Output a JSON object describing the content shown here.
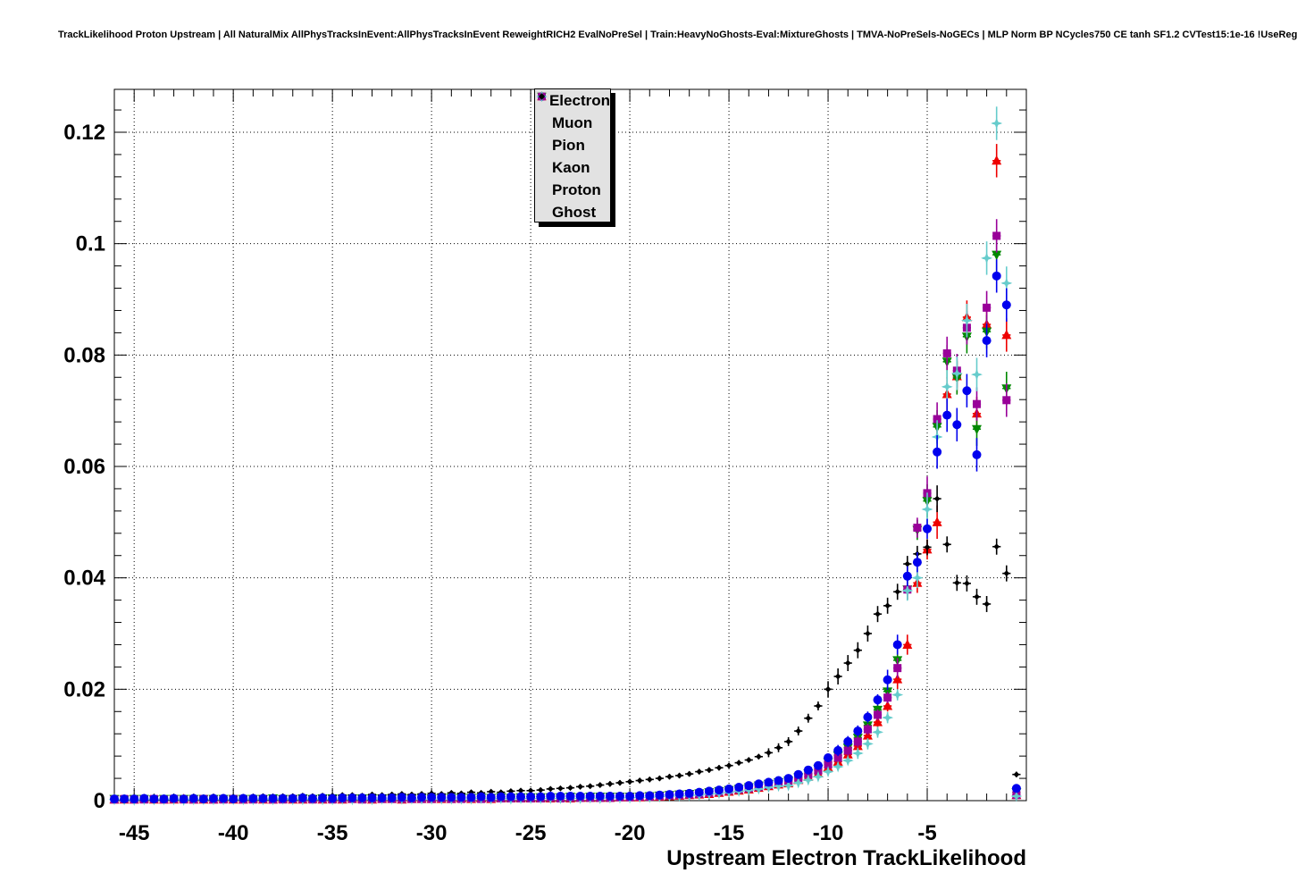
{
  "title": "TrackLikelihood Proton Upstream | All NaturalMix AllPhysTracksInEvent:AllPhysTracksInEvent ReweightRICH2 EvalNoPreSel | Train:HeavyNoGhosts-Eval:MixtureGhosts | TMVA-NoPreSels-NoGECs | MLP Norm BP NCycles750 CE tanh SF1.2 CVTest15:1e-16 !UseReg",
  "axes": {
    "x_label": "Upstream Electron TrackLikelihood",
    "x_range": [
      -46.0,
      0.0
    ],
    "y_range": [
      0.0,
      0.1277
    ],
    "x_ticks": [
      -45,
      -40,
      -35,
      -30,
      -25,
      -20,
      -15,
      -10,
      -5
    ],
    "x_tick_labels": [
      "-45",
      "-40",
      "-35",
      "-30",
      "-25",
      "-20",
      "-15",
      "-10",
      "-5"
    ],
    "y_ticks": [
      0,
      0.02,
      0.04,
      0.06,
      0.08,
      0.1,
      0.12
    ],
    "y_tick_labels": [
      "0",
      "0.02",
      "0.04",
      "0.06",
      "0.08",
      "0.1",
      "0.12"
    ],
    "x_minor_step": 1,
    "y_minor_step": 0.004,
    "grid": true
  },
  "legend": {
    "entries": [
      {
        "label": "Electron",
        "color": "#ee0000",
        "marker": "triangle-up"
      },
      {
        "label": "Muon",
        "color": "#0000ee",
        "marker": "circle"
      },
      {
        "label": "Pion",
        "color": "#008800",
        "marker": "triangle-down"
      },
      {
        "label": "Kaon",
        "color": "#990099",
        "marker": "square"
      },
      {
        "label": "Proton",
        "color": "#66cccc",
        "marker": "star4"
      },
      {
        "label": "Ghost",
        "color": "#000000",
        "marker": "small-diamond"
      }
    ]
  },
  "chart_data": {
    "type": "scatter",
    "title": "TrackLikelihood Proton Upstream | All NaturalMix AllPhysTracksInEvent:AllPhysTracksInEvent ReweightRICH2 EvalNoPreSel | Train:HeavyNoGhosts-Eval:MixtureGhosts | TMVA-NoPreSels-NoGECs | MLP Norm BP NCycles750 CE tanh SF1.2 CVTest15:1e-16 !UseReg",
    "xlabel": "Upstream Electron TrackLikelihood",
    "ylabel": "",
    "xlim": [
      -46.0,
      0.0
    ],
    "ylim": [
      0.0,
      0.1277
    ],
    "grid": true,
    "legend_position": "top-center",
    "x_start": -46.0,
    "x_step": 0.5,
    "n_bins": 92,
    "series": [
      {
        "name": "Electron",
        "color": "#ee0000",
        "marker": "triangle-up",
        "values": [
          0.0002,
          0.0002,
          0.0002,
          0.0003,
          0.0002,
          0.0002,
          0.0002,
          0.0003,
          0.0002,
          0.0002,
          0.0002,
          0.0003,
          0.0002,
          0.0002,
          0.0003,
          0.0002,
          0.0002,
          0.0003,
          0.0002,
          0.0002,
          0.0003,
          0.0002,
          0.0003,
          0.0002,
          0.0003,
          0.0003,
          0.0002,
          0.0003,
          0.0003,
          0.0002,
          0.0003,
          0.0003,
          0.0003,
          0.0003,
          0.0003,
          0.0004,
          0.0003,
          0.0004,
          0.0003,
          0.0004,
          0.0004,
          0.0004,
          0.0004,
          0.0004,
          0.0004,
          0.0005,
          0.0004,
          0.0005,
          0.0005,
          0.0005,
          0.0005,
          0.0006,
          0.0006,
          0.0006,
          0.0007,
          0.0007,
          0.0008,
          0.0009,
          0.001,
          0.0011,
          0.0012,
          0.0014,
          0.0016,
          0.0018,
          0.002,
          0.0023,
          0.0026,
          0.0029,
          0.0031,
          0.0037,
          0.0043,
          0.0049,
          0.006,
          0.007,
          0.0083,
          0.0098,
          0.0117,
          0.0141,
          0.017,
          0.0218,
          0.028,
          0.0391,
          0.0451,
          0.05,
          0.073,
          0.0762,
          0.0868,
          0.0695,
          0.0855,
          0.1149,
          0.0836,
          0.001
        ]
      },
      {
        "name": "Muon",
        "color": "#0000ee",
        "marker": "circle",
        "values": [
          0.0003,
          0.0003,
          0.0003,
          0.0004,
          0.0003,
          0.0003,
          0.0004,
          0.0003,
          0.0004,
          0.0003,
          0.0004,
          0.0004,
          0.0003,
          0.0004,
          0.0004,
          0.0004,
          0.0004,
          0.0004,
          0.0004,
          0.0005,
          0.0004,
          0.0005,
          0.0004,
          0.0005,
          0.0005,
          0.0005,
          0.0005,
          0.0005,
          0.0005,
          0.0006,
          0.0005,
          0.0006,
          0.0006,
          0.0006,
          0.0006,
          0.0006,
          0.0006,
          0.0007,
          0.0006,
          0.0007,
          0.0007,
          0.0007,
          0.0007,
          0.0007,
          0.0008,
          0.0008,
          0.0008,
          0.0008,
          0.0008,
          0.0008,
          0.0008,
          0.0008,
          0.0008,
          0.0009,
          0.0009,
          0.001,
          0.0011,
          0.0012,
          0.0013,
          0.0015,
          0.0017,
          0.0019,
          0.0021,
          0.0024,
          0.0027,
          0.003,
          0.0033,
          0.0036,
          0.004,
          0.0047,
          0.0055,
          0.0063,
          0.0077,
          0.009,
          0.0106,
          0.0125,
          0.015,
          0.0181,
          0.0217,
          0.028,
          0.0403,
          0.0428,
          0.0488,
          0.0626,
          0.0692,
          0.0675,
          0.0736,
          0.0621,
          0.0826,
          0.0942,
          0.089,
          0.0022
        ]
      },
      {
        "name": "Pion",
        "color": "#008800",
        "marker": "triangle-down",
        "values": [
          0.0003,
          0.0002,
          0.0003,
          0.0003,
          0.0002,
          0.0003,
          0.0003,
          0.0003,
          0.0003,
          0.0003,
          0.0003,
          0.0003,
          0.0003,
          0.0003,
          0.0003,
          0.0003,
          0.0004,
          0.0003,
          0.0003,
          0.0004,
          0.0003,
          0.0004,
          0.0004,
          0.0003,
          0.0004,
          0.0004,
          0.0004,
          0.0004,
          0.0004,
          0.0004,
          0.0004,
          0.0005,
          0.0004,
          0.0005,
          0.0005,
          0.0005,
          0.0005,
          0.0005,
          0.0005,
          0.0006,
          0.0005,
          0.0006,
          0.0006,
          0.0006,
          0.0006,
          0.0006,
          0.0007,
          0.0006,
          0.0007,
          0.0007,
          0.0007,
          0.0007,
          0.0007,
          0.0007,
          0.0008,
          0.0009,
          0.001,
          0.0011,
          0.0012,
          0.0013,
          0.0015,
          0.0017,
          0.0019,
          0.0021,
          0.0024,
          0.0027,
          0.003,
          0.0033,
          0.0036,
          0.0042,
          0.0049,
          0.0057,
          0.0069,
          0.0081,
          0.0095,
          0.0113,
          0.0135,
          0.0163,
          0.0196,
          0.0252,
          0.0379,
          0.0486,
          0.0538,
          0.0671,
          0.0788,
          0.0759,
          0.0833,
          0.0667,
          0.0842,
          0.098,
          0.074,
          0.0015
        ]
      },
      {
        "name": "Kaon",
        "color": "#990099",
        "marker": "square",
        "values": [
          0.0002,
          0.0003,
          0.0002,
          0.0002,
          0.0003,
          0.0002,
          0.0003,
          0.0002,
          0.0002,
          0.0003,
          0.0002,
          0.0002,
          0.0003,
          0.0002,
          0.0002,
          0.0003,
          0.0002,
          0.0002,
          0.0003,
          0.0003,
          0.0002,
          0.0003,
          0.0002,
          0.0003,
          0.0003,
          0.0002,
          0.0003,
          0.0003,
          0.0003,
          0.0003,
          0.0003,
          0.0003,
          0.0003,
          0.0004,
          0.0003,
          0.0003,
          0.0004,
          0.0003,
          0.0004,
          0.0004,
          0.0004,
          0.0004,
          0.0004,
          0.0004,
          0.0005,
          0.0004,
          0.0005,
          0.0005,
          0.0005,
          0.0005,
          0.0005,
          0.0006,
          0.0006,
          0.0007,
          0.0007,
          0.0008,
          0.0009,
          0.001,
          0.0011,
          0.0012,
          0.0014,
          0.0016,
          0.0018,
          0.002,
          0.0022,
          0.0025,
          0.0028,
          0.0031,
          0.0034,
          0.004,
          0.0047,
          0.0054,
          0.0065,
          0.0077,
          0.009,
          0.0106,
          0.0128,
          0.0154,
          0.0185,
          0.0238,
          0.0379,
          0.049,
          0.0552,
          0.0685,
          0.0803,
          0.0772,
          0.0849,
          0.0712,
          0.0885,
          0.1014,
          0.0719,
          0.001
        ]
      },
      {
        "name": "Proton",
        "color": "#66cccc",
        "marker": "star4",
        "values": [
          0.0002,
          0.0002,
          0.0001,
          0.0002,
          0.0002,
          0.0002,
          0.0002,
          0.0001,
          0.0002,
          0.0002,
          0.0002,
          0.0002,
          0.0002,
          0.0002,
          0.0002,
          0.0002,
          0.0002,
          0.0003,
          0.0002,
          0.0002,
          0.0003,
          0.0002,
          0.0002,
          0.0003,
          0.0002,
          0.0003,
          0.0002,
          0.0003,
          0.0003,
          0.0003,
          0.0003,
          0.0003,
          0.0003,
          0.0003,
          0.0003,
          0.0003,
          0.0003,
          0.0004,
          0.0003,
          0.0004,
          0.0003,
          0.0004,
          0.0004,
          0.0004,
          0.0004,
          0.0004,
          0.0004,
          0.0004,
          0.0005,
          0.0004,
          0.0005,
          0.0005,
          0.0005,
          0.0006,
          0.0006,
          0.0007,
          0.0008,
          0.0008,
          0.0009,
          0.001,
          0.0012,
          0.0013,
          0.0015,
          0.0017,
          0.0019,
          0.0021,
          0.0024,
          0.0026,
          0.0027,
          0.0032,
          0.0037,
          0.0043,
          0.0052,
          0.0061,
          0.0072,
          0.0085,
          0.0102,
          0.0123,
          0.0149,
          0.019,
          0.0377,
          0.04,
          0.0523,
          0.0653,
          0.0743,
          0.0767,
          0.0862,
          0.0765,
          0.0974,
          0.1216,
          0.0929,
          0.0008
        ]
      },
      {
        "name": "Ghost",
        "color": "#000000",
        "marker": "small-diamond",
        "values": [
          0.0005,
          0.0005,
          0.0004,
          0.0005,
          0.0006,
          0.0005,
          0.0006,
          0.0005,
          0.0006,
          0.0006,
          0.0007,
          0.0006,
          0.0007,
          0.0007,
          0.0006,
          0.0008,
          0.0007,
          0.0008,
          0.0008,
          0.0009,
          0.0008,
          0.0009,
          0.0009,
          0.001,
          0.001,
          0.0009,
          0.0011,
          0.001,
          0.0011,
          0.0012,
          0.0011,
          0.0012,
          0.0013,
          0.0012,
          0.0014,
          0.0013,
          0.0015,
          0.0014,
          0.0016,
          0.0015,
          0.0017,
          0.0018,
          0.0018,
          0.0019,
          0.0021,
          0.0022,
          0.0023,
          0.0025,
          0.0026,
          0.0028,
          0.003,
          0.0032,
          0.0034,
          0.0036,
          0.0038,
          0.004,
          0.0043,
          0.0045,
          0.0048,
          0.0052,
          0.0055,
          0.0059,
          0.0063,
          0.0068,
          0.0073,
          0.0079,
          0.0086,
          0.0095,
          0.0106,
          0.0125,
          0.0148,
          0.017,
          0.02,
          0.0223,
          0.0247,
          0.027,
          0.03,
          0.0335,
          0.035,
          0.0375,
          0.0425,
          0.0443,
          0.0455,
          0.0542,
          0.046,
          0.0391,
          0.039,
          0.0366,
          0.0353,
          0.0456,
          0.0408,
          0.0047
        ]
      }
    ]
  }
}
